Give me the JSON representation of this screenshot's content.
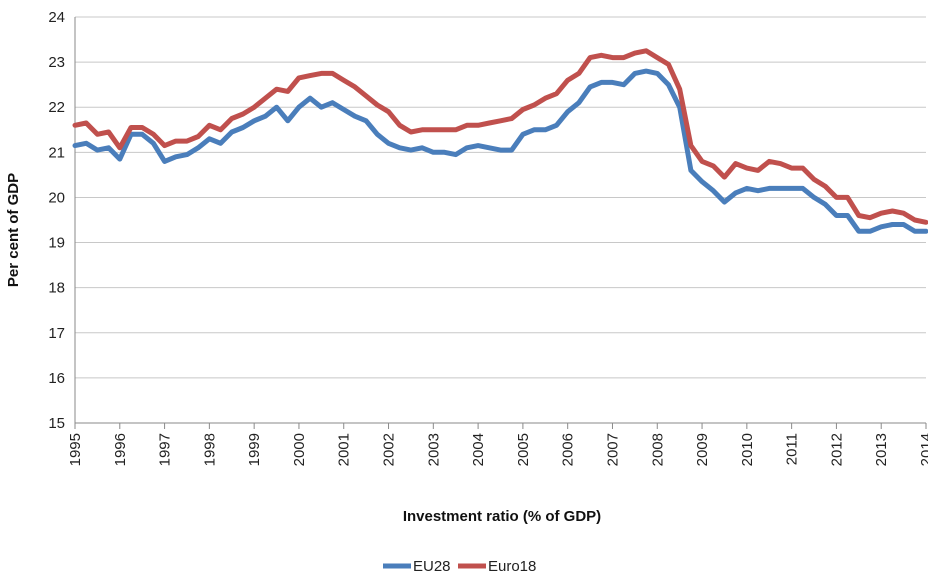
{
  "chart_data": {
    "type": "line",
    "title": "",
    "xlabel": "Investment ratio (% of GDP)",
    "ylabel": "Per cent of GDP",
    "ylim": [
      15,
      24
    ],
    "yticks": [
      15,
      16,
      17,
      18,
      19,
      20,
      21,
      22,
      23,
      24
    ],
    "xticks": [
      "1995",
      "1996",
      "1997",
      "1998",
      "1999",
      "2000",
      "2001",
      "2002",
      "2003",
      "2004",
      "2005",
      "2006",
      "2007",
      "2008",
      "2009",
      "2010",
      "2011",
      "2012",
      "2013",
      "2014"
    ],
    "x_start": 1995.0,
    "x_step": 0.25,
    "grid": "horizontal",
    "legend_position": "bottom",
    "series": [
      {
        "name": "EU28",
        "color": "#4a7ebb",
        "values": [
          21.15,
          21.2,
          21.05,
          21.1,
          20.85,
          21.4,
          21.4,
          21.2,
          20.8,
          20.9,
          20.95,
          21.1,
          21.3,
          21.2,
          21.45,
          21.55,
          21.7,
          21.8,
          22.0,
          21.7,
          22.0,
          22.2,
          22.0,
          22.1,
          21.95,
          21.8,
          21.7,
          21.4,
          21.2,
          21.1,
          21.05,
          21.1,
          21.0,
          21.0,
          20.95,
          21.1,
          21.15,
          21.1,
          21.05,
          21.05,
          21.4,
          21.5,
          21.5,
          21.6,
          21.9,
          22.1,
          22.45,
          22.55,
          22.55,
          22.5,
          22.75,
          22.8,
          22.75,
          22.5,
          22.0,
          20.6,
          20.35,
          20.15,
          19.9,
          20.1,
          20.2,
          20.15,
          20.2,
          20.2,
          20.2,
          20.2,
          20.0,
          19.85,
          19.6,
          19.6,
          19.25,
          19.25,
          19.35,
          19.4,
          19.4,
          19.25,
          19.25
        ]
      },
      {
        "name": "Euro18",
        "color": "#c0504d",
        "values": [
          21.6,
          21.65,
          21.4,
          21.45,
          21.1,
          21.55,
          21.55,
          21.4,
          21.15,
          21.25,
          21.25,
          21.35,
          21.6,
          21.5,
          21.75,
          21.85,
          22.0,
          22.2,
          22.4,
          22.35,
          22.65,
          22.7,
          22.75,
          22.75,
          22.6,
          22.45,
          22.25,
          22.05,
          21.9,
          21.6,
          21.45,
          21.5,
          21.5,
          21.5,
          21.5,
          21.6,
          21.6,
          21.65,
          21.7,
          21.75,
          21.95,
          22.05,
          22.2,
          22.3,
          22.6,
          22.75,
          23.1,
          23.15,
          23.1,
          23.1,
          23.2,
          23.25,
          23.1,
          22.95,
          22.4,
          21.15,
          20.8,
          20.7,
          20.45,
          20.75,
          20.65,
          20.6,
          20.8,
          20.75,
          20.65,
          20.65,
          20.4,
          20.25,
          20.0,
          20.0,
          19.6,
          19.55,
          19.65,
          19.7,
          19.65,
          19.5,
          19.45
        ]
      }
    ]
  }
}
